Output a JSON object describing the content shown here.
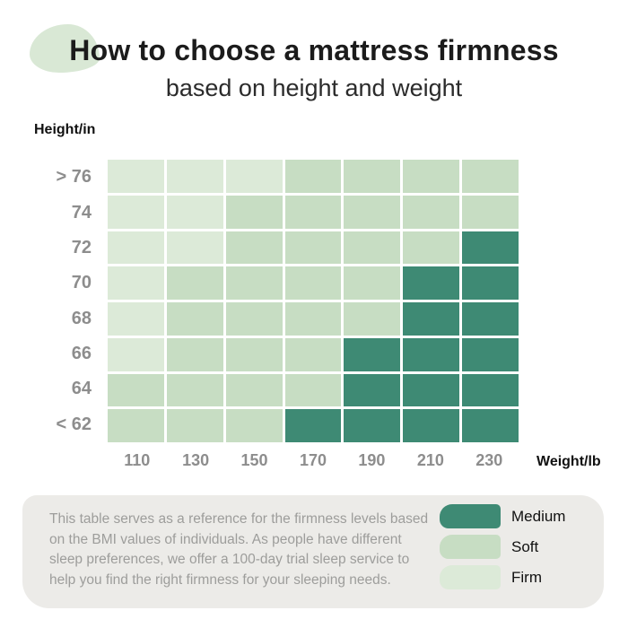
{
  "title": "How to choose a mattress firmness",
  "subtitle": "based on height and weight",
  "colors": {
    "leaf": "#d9e8d5",
    "panel": "#ecebe8",
    "grid_gap": "#ffffff"
  },
  "chart_data": {
    "type": "heatmap",
    "title": "How to choose a mattress firmness",
    "subtitle": "based on height and weight",
    "x_axis_title": "Weight/lb",
    "y_axis_title": "Height/in",
    "columns": [
      "110",
      "130",
      "150",
      "170",
      "190",
      "210",
      "230"
    ],
    "rows": [
      "> 76",
      "74",
      "72",
      "70",
      "68",
      "66",
      "64",
      "< 62"
    ],
    "legend": [
      {
        "key": "medium",
        "label": "Medium",
        "color": "#3e8a74"
      },
      {
        "key": "soft",
        "label": "Soft",
        "color": "#c7ddc3"
      },
      {
        "key": "firm",
        "label": "Firm",
        "color": "#dcead8"
      }
    ],
    "legend_position": "bottom-right",
    "cells": [
      [
        "firm",
        "firm",
        "firm",
        "soft",
        "soft",
        "soft",
        "soft"
      ],
      [
        "firm",
        "firm",
        "soft",
        "soft",
        "soft",
        "soft",
        "soft"
      ],
      [
        "firm",
        "firm",
        "soft",
        "soft",
        "soft",
        "soft",
        "medium"
      ],
      [
        "firm",
        "soft",
        "soft",
        "soft",
        "soft",
        "medium",
        "medium"
      ],
      [
        "firm",
        "soft",
        "soft",
        "soft",
        "soft",
        "medium",
        "medium"
      ],
      [
        "firm",
        "soft",
        "soft",
        "soft",
        "medium",
        "medium",
        "medium"
      ],
      [
        "soft",
        "soft",
        "soft",
        "soft",
        "medium",
        "medium",
        "medium"
      ],
      [
        "soft",
        "soft",
        "soft",
        "medium",
        "medium",
        "medium",
        "medium"
      ]
    ]
  },
  "footer": {
    "text": "This table serves as a reference for the firmness levels based on the BMI values of individuals. As people have different sleep preferences, we offer a 100-day trial sleep service to help you find the right firmness for your sleeping needs."
  }
}
